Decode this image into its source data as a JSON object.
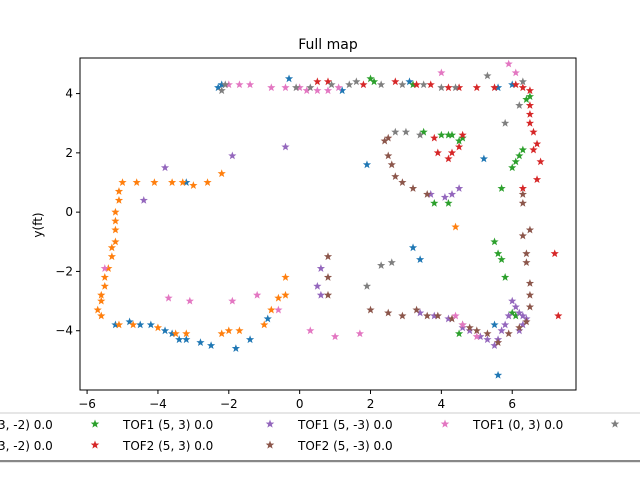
{
  "chart_data": {
    "type": "scatter",
    "title": "Full map",
    "xlabel": "",
    "ylabel": "y(ft)",
    "xlim": [
      -6.2,
      7.8
    ],
    "ylim": [
      -6.0,
      5.2
    ],
    "xticks": [
      -6,
      -4,
      -2,
      0,
      2,
      4,
      6
    ],
    "yticks": [
      -4,
      -2,
      0,
      2,
      4
    ],
    "grid": false,
    "legend_position": "bottom",
    "marker": "star",
    "series": [
      {
        "name": "TOF1 (5, -3) 0.0",
        "label_visible": "3, -2) 0.0",
        "color": "#1f77b4",
        "points": [
          [
            -0.3,
            4.5
          ],
          [
            -2.2,
            4.3
          ],
          [
            -2.3,
            4.2
          ],
          [
            1.2,
            4.1
          ],
          [
            3.1,
            4.4
          ],
          [
            5.6,
            4.2
          ],
          [
            6.0,
            4.3
          ],
          [
            -5.2,
            -3.8
          ],
          [
            -4.8,
            -3.7
          ],
          [
            -4.5,
            -3.8
          ],
          [
            -4.2,
            -3.8
          ],
          [
            -3.8,
            -4.0
          ],
          [
            -3.6,
            -4.1
          ],
          [
            -3.4,
            -4.3
          ],
          [
            -3.2,
            -4.3
          ],
          [
            -2.8,
            -4.4
          ],
          [
            -2.5,
            -4.5
          ],
          [
            -1.8,
            -4.6
          ],
          [
            -1.4,
            -4.3
          ],
          [
            -0.9,
            -3.6
          ],
          [
            -3.2,
            1.0
          ],
          [
            1.9,
            1.6
          ],
          [
            3.2,
            -1.2
          ],
          [
            3.4,
            -1.6
          ],
          [
            5.2,
            1.8
          ],
          [
            5.5,
            -3.8
          ],
          [
            5.6,
            -5.5
          ]
        ]
      },
      {
        "name": "TOF2 (5, -3) 0.0",
        "label_visible": "3, -2) 0.0",
        "color": "#ff7f0e",
        "points": [
          [
            -5.0,
            1.0
          ],
          [
            -4.6,
            1.0
          ],
          [
            -4.1,
            1.0
          ],
          [
            -3.6,
            1.0
          ],
          [
            -3.3,
            1.0
          ],
          [
            -3.0,
            0.9
          ],
          [
            -2.6,
            1.0
          ],
          [
            -2.2,
            1.3
          ],
          [
            -5.1,
            0.7
          ],
          [
            -5.1,
            0.4
          ],
          [
            -5.2,
            0.0
          ],
          [
            -5.2,
            -0.3
          ],
          [
            -5.2,
            -0.6
          ],
          [
            -5.2,
            -1.0
          ],
          [
            -5.3,
            -1.2
          ],
          [
            -5.3,
            -1.5
          ],
          [
            -5.4,
            -1.9
          ],
          [
            -5.5,
            -2.2
          ],
          [
            -5.5,
            -2.5
          ],
          [
            -5.6,
            -2.8
          ],
          [
            -5.6,
            -3.0
          ],
          [
            -5.7,
            -3.3
          ],
          [
            -5.6,
            -3.5
          ],
          [
            -5.1,
            -3.8
          ],
          [
            -4.7,
            -3.8
          ],
          [
            -4.0,
            -3.9
          ],
          [
            -3.5,
            -4.1
          ],
          [
            -3.2,
            -4.1
          ],
          [
            -2.2,
            -4.1
          ],
          [
            -2.0,
            -4.0
          ],
          [
            -1.7,
            -4.0
          ],
          [
            -1.0,
            -3.8
          ],
          [
            -0.8,
            -3.3
          ],
          [
            -0.6,
            -2.9
          ],
          [
            -0.4,
            -2.8
          ],
          [
            -0.4,
            -2.2
          ],
          [
            4.4,
            -0.5
          ]
        ]
      },
      {
        "name": "TOF1 (5, 3) 0.0",
        "color": "#2ca02c",
        "points": [
          [
            2.0,
            4.5
          ],
          [
            2.1,
            4.4
          ],
          [
            3.2,
            4.3
          ],
          [
            3.5,
            2.7
          ],
          [
            4.0,
            2.6
          ],
          [
            4.2,
            2.6
          ],
          [
            4.3,
            2.6
          ],
          [
            4.5,
            2.4
          ],
          [
            4.6,
            2.5
          ],
          [
            6.0,
            1.5
          ],
          [
            6.1,
            1.7
          ],
          [
            6.2,
            1.9
          ],
          [
            6.3,
            2.1
          ],
          [
            5.7,
            0.8
          ],
          [
            5.5,
            -1.0
          ],
          [
            5.6,
            -1.4
          ],
          [
            5.7,
            -1.6
          ],
          [
            5.8,
            -2.2
          ],
          [
            4.5,
            -4.1
          ],
          [
            6.0,
            -3.4
          ],
          [
            6.1,
            -3.5
          ],
          [
            3.8,
            0.3
          ],
          [
            4.2,
            0.3
          ],
          [
            6.4,
            3.8
          ],
          [
            6.5,
            3.9
          ]
        ]
      },
      {
        "name": "TOF2 (5, 3) 0.0",
        "color": "#d62728",
        "points": [
          [
            0.5,
            4.4
          ],
          [
            0.8,
            4.4
          ],
          [
            1.8,
            4.3
          ],
          [
            2.7,
            4.4
          ],
          [
            3.3,
            4.3
          ],
          [
            3.7,
            4.3
          ],
          [
            4.2,
            4.2
          ],
          [
            4.5,
            4.2
          ],
          [
            5.0,
            4.2
          ],
          [
            5.5,
            4.2
          ],
          [
            6.1,
            4.3
          ],
          [
            6.3,
            4.2
          ],
          [
            6.5,
            4.1
          ],
          [
            6.5,
            3.6
          ],
          [
            6.5,
            3.3
          ],
          [
            6.5,
            3.0
          ],
          [
            6.6,
            2.7
          ],
          [
            6.7,
            2.3
          ],
          [
            6.6,
            2.1
          ],
          [
            6.8,
            1.7
          ],
          [
            6.7,
            1.1
          ],
          [
            6.3,
            0.8
          ],
          [
            7.2,
            -1.4
          ],
          [
            7.3,
            -3.5
          ],
          [
            3.8,
            2.5
          ],
          [
            3.9,
            2.0
          ],
          [
            4.2,
            1.8
          ],
          [
            4.3,
            2.0
          ],
          [
            4.5,
            2.2
          ],
          [
            4.6,
            2.6
          ]
        ]
      },
      {
        "name": "TOF1 (5, -3) 0.0",
        "color": "#9467bd",
        "points": [
          [
            -3.8,
            1.5
          ],
          [
            -4.4,
            0.4
          ],
          [
            -1.9,
            1.9
          ],
          [
            -0.4,
            2.2
          ],
          [
            0.6,
            -1.9
          ],
          [
            0.5,
            -2.5
          ],
          [
            0.6,
            -2.8
          ],
          [
            6.2,
            -4.0
          ],
          [
            6.3,
            -3.8
          ],
          [
            6.4,
            -3.6
          ],
          [
            6.3,
            -3.5
          ],
          [
            6.2,
            -3.4
          ],
          [
            6.1,
            -3.2
          ],
          [
            6.0,
            -3.0
          ],
          [
            5.9,
            -3.5
          ],
          [
            5.8,
            -3.8
          ],
          [
            5.7,
            -4.0
          ],
          [
            5.6,
            -4.3
          ],
          [
            5.5,
            -4.5
          ],
          [
            5.3,
            -4.3
          ],
          [
            5.1,
            -4.2
          ],
          [
            4.8,
            -4.0
          ],
          [
            4.6,
            -3.9
          ],
          [
            4.2,
            -3.6
          ],
          [
            3.8,
            -3.5
          ],
          [
            3.4,
            -3.4
          ],
          [
            3.7,
            0.6
          ],
          [
            4.1,
            0.5
          ],
          [
            4.3,
            0.6
          ],
          [
            4.5,
            0.8
          ]
        ]
      },
      {
        "name": "TOF2 (5, -3) 0.0",
        "color": "#8c564b",
        "points": [
          [
            0.8,
            -1.5
          ],
          [
            0.8,
            -2.2
          ],
          [
            0.8,
            -2.8
          ],
          [
            2.0,
            -3.3
          ],
          [
            2.5,
            -3.4
          ],
          [
            2.9,
            -3.5
          ],
          [
            3.3,
            -3.3
          ],
          [
            3.6,
            -3.5
          ],
          [
            3.9,
            -3.5
          ],
          [
            4.3,
            -3.6
          ],
          [
            4.6,
            -3.8
          ],
          [
            4.8,
            -3.9
          ],
          [
            5.0,
            -4.0
          ],
          [
            5.3,
            -4.1
          ],
          [
            5.6,
            -4.4
          ],
          [
            5.9,
            -4.1
          ],
          [
            6.2,
            -3.9
          ],
          [
            6.4,
            -3.7
          ],
          [
            6.5,
            -3.2
          ],
          [
            6.5,
            -2.8
          ],
          [
            6.5,
            -2.4
          ],
          [
            6.4,
            -1.7
          ],
          [
            6.4,
            -1.4
          ],
          [
            6.3,
            -0.8
          ],
          [
            6.5,
            -0.6
          ],
          [
            6.3,
            0.3
          ],
          [
            6.3,
            0.6
          ],
          [
            2.5,
            1.9
          ],
          [
            2.6,
            1.6
          ],
          [
            2.7,
            1.2
          ],
          [
            2.9,
            1.0
          ],
          [
            3.2,
            0.8
          ],
          [
            3.6,
            0.6
          ],
          [
            2.4,
            2.4
          ],
          [
            2.5,
            2.5
          ]
        ]
      },
      {
        "name": "TOF1 (0, 3) 0.0",
        "color": "#e377c2",
        "points": [
          [
            -2.0,
            4.3
          ],
          [
            -1.7,
            4.3
          ],
          [
            -1.4,
            4.3
          ],
          [
            -0.8,
            4.2
          ],
          [
            -0.4,
            4.2
          ],
          [
            0.0,
            4.2
          ],
          [
            0.2,
            4.1
          ],
          [
            0.5,
            4.1
          ],
          [
            0.8,
            4.1
          ],
          [
            1.1,
            4.2
          ],
          [
            4.0,
            4.7
          ],
          [
            5.9,
            5.0
          ],
          [
            6.1,
            4.7
          ],
          [
            -5.5,
            -1.9
          ],
          [
            -3.7,
            -2.9
          ],
          [
            -3.1,
            -3.0
          ],
          [
            -1.9,
            -3.0
          ],
          [
            -1.2,
            -2.8
          ],
          [
            -0.6,
            -3.3
          ],
          [
            0.3,
            -4.0
          ],
          [
            1.0,
            -4.2
          ],
          [
            1.7,
            -4.1
          ],
          [
            5.0,
            -4.2
          ],
          [
            4.6,
            -3.8
          ],
          [
            4.4,
            -3.5
          ]
        ]
      },
      {
        "name": "",
        "color": "#7f7f7f",
        "points": [
          [
            -0.1,
            4.2
          ],
          [
            0.3,
            4.2
          ],
          [
            0.9,
            4.3
          ],
          [
            1.4,
            4.3
          ],
          [
            1.6,
            4.4
          ],
          [
            2.3,
            4.3
          ],
          [
            2.9,
            4.3
          ],
          [
            3.5,
            4.3
          ],
          [
            4.0,
            4.2
          ],
          [
            4.4,
            4.2
          ],
          [
            5.3,
            4.6
          ],
          [
            5.8,
            3.0
          ],
          [
            6.3,
            4.4
          ],
          [
            6.2,
            3.6
          ],
          [
            2.7,
            2.7
          ],
          [
            3.0,
            2.7
          ],
          [
            3.4,
            2.6
          ],
          [
            2.3,
            -1.8
          ],
          [
            2.6,
            -1.7
          ],
          [
            1.9,
            -2.5
          ],
          [
            -2.1,
            4.3
          ],
          [
            -2.2,
            4.1
          ]
        ]
      }
    ],
    "legend_entries": [
      {
        "label": "3, -2) 0.0",
        "color": "#1f77b4",
        "row": 0,
        "col": 0
      },
      {
        "label": "TOF1 (5, 3) 0.0",
        "color": "#2ca02c",
        "row": 0,
        "col": 1
      },
      {
        "label": "TOF1 (5, -3) 0.0",
        "color": "#9467bd",
        "row": 0,
        "col": 2
      },
      {
        "label": "TOF1 (0, 3) 0.0",
        "color": "#e377c2",
        "row": 0,
        "col": 3
      },
      {
        "label": "",
        "color": "#7f7f7f",
        "row": 0,
        "col": 4
      },
      {
        "label": "3, -2) 0.0",
        "color": "#ff7f0e",
        "row": 1,
        "col": 0
      },
      {
        "label": "TOF2 (5, 3) 0.0",
        "color": "#d62728",
        "row": 1,
        "col": 1
      },
      {
        "label": "TOF2 (5, -3) 0.0",
        "color": "#8c564b",
        "row": 1,
        "col": 2
      }
    ]
  }
}
